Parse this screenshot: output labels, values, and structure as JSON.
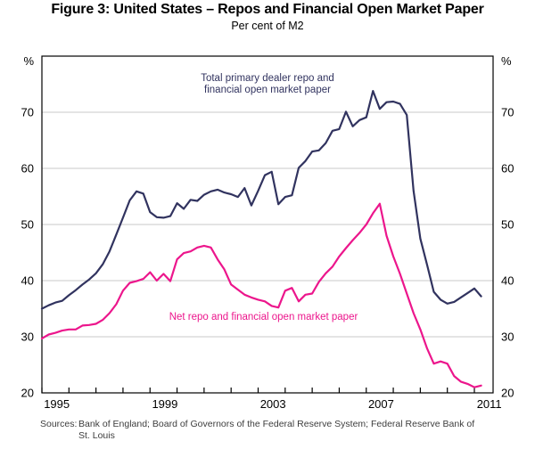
{
  "figure": {
    "title": "Figure 3: United States – Repos and Financial Open Market Paper",
    "subtitle": "Per cent of M2",
    "sources_label": "Sources:",
    "sources_line1": "Bank of England; Board of Governors of the Federal Reserve System; Federal Reserve Bank of",
    "sources_line2": "St. Louis"
  },
  "chart_data": {
    "type": "line",
    "title": "Figure 3: United States – Repos and Financial Open Market Paper",
    "subtitle": "Per cent of M2",
    "unit_symbol": "%",
    "xlabel": "",
    "ylabel": "Per cent of M2",
    "ylim": [
      20,
      80
    ],
    "yticks": [
      20,
      30,
      40,
      50,
      60,
      70
    ],
    "gridlines": [
      30,
      40,
      50,
      60,
      70
    ],
    "grid": "horizontal",
    "legend_position": "inline-annotations",
    "xticks": [
      1995,
      1996,
      1997,
      1998,
      1999,
      2000,
      2001,
      2002,
      2003,
      2004,
      2005,
      2006,
      2007,
      2008,
      2009,
      2010,
      2011
    ],
    "xtick_labels": [
      "1995",
      "1999",
      "2003",
      "2007",
      "2011"
    ],
    "xtick_label_years": [
      1995,
      1999,
      2003,
      2007,
      2011
    ],
    "x_start": 1995.0,
    "x_step": 0.25,
    "colors": {
      "grid": "#c9c9c9",
      "frame": "#000000",
      "total": "#31335f",
      "net": "#ec168c"
    },
    "series": [
      {
        "name": "Total primary dealer repo and financial open market paper",
        "data_name": "series-line-total",
        "color": "#31335f",
        "values": [
          35.0,
          35.6,
          36.1,
          36.4,
          37.4,
          38.3,
          39.3,
          40.2,
          41.3,
          42.9,
          45.2,
          48.2,
          51.2,
          54.3,
          55.9,
          55.5,
          52.2,
          51.3,
          51.2,
          51.5,
          53.8,
          52.8,
          54.4,
          54.2,
          55.3,
          55.9,
          56.2,
          55.7,
          55.4,
          54.9,
          56.5,
          53.4,
          56.0,
          58.8,
          59.4,
          53.6,
          54.9,
          55.2,
          60.1,
          61.3,
          63.0,
          63.2,
          64.5,
          66.7,
          67.0,
          70.1,
          67.5,
          68.6,
          69.1,
          73.8,
          70.6,
          71.8,
          71.9,
          71.5,
          69.5,
          56.0,
          47.5,
          42.8,
          38.0,
          36.6,
          35.9,
          36.2,
          37.0,
          37.8,
          38.6,
          37.2
        ]
      },
      {
        "name": "Net repo and financial open market paper",
        "data_name": "series-line-net",
        "color": "#ec168c",
        "values": [
          29.7,
          30.4,
          30.7,
          31.1,
          31.3,
          31.3,
          32.0,
          32.1,
          32.3,
          33.0,
          34.2,
          35.8,
          38.2,
          39.6,
          39.9,
          40.3,
          41.5,
          40.0,
          41.2,
          39.9,
          43.8,
          44.9,
          45.2,
          45.9,
          46.2,
          45.9,
          43.8,
          42.0,
          39.3,
          38.4,
          37.5,
          37.0,
          36.6,
          36.3,
          35.5,
          35.2,
          38.2,
          38.7,
          36.3,
          37.5,
          37.7,
          39.8,
          41.3,
          42.5,
          44.3,
          45.8,
          47.2,
          48.5,
          50.0,
          52.0,
          53.7,
          48.0,
          44.3,
          41.2,
          37.7,
          34.2,
          31.3,
          27.9,
          25.2,
          25.6,
          25.2,
          23.0,
          22.0,
          21.6,
          21.0,
          21.3
        ]
      }
    ],
    "annotations": [
      {
        "line1": "Total primary dealer repo and",
        "line2": "financial open market paper"
      },
      {
        "line1": "Net repo and financial open market paper"
      }
    ]
  }
}
